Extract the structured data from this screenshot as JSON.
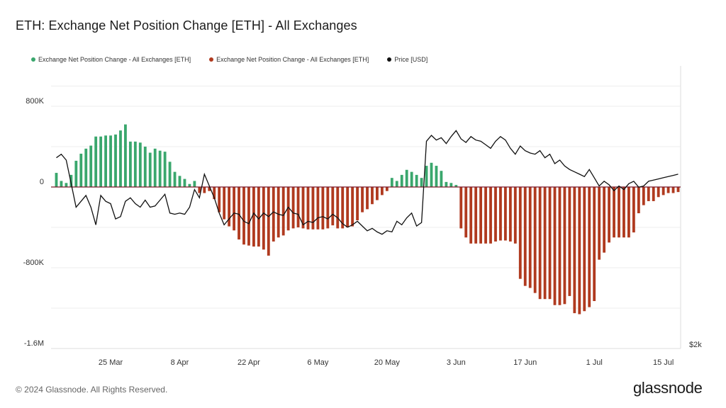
{
  "title": "ETH: Exchange Net Position Change [ETH] - All Exchanges",
  "footer": {
    "copyright": "© 2024 Glassnode. All Rights Reserved.",
    "brand": "glassnode"
  },
  "chart_data": {
    "type": "bar",
    "title": "ETH: Exchange Net Position Change [ETH] - All Exchanges",
    "legend": [
      {
        "label": "Exchange Net Position Change - All Exchanges [ETH]",
        "color": "#3aa76d"
      },
      {
        "label": "Exchange Net Position Change - All Exchanges [ETH]",
        "color": "#b03a1f"
      },
      {
        "label": "Price [USD]",
        "color": "#111111"
      }
    ],
    "legend_position": "top-left",
    "y_left": {
      "ticks": [
        "800K",
        "0",
        "-800K",
        "-1.6M"
      ],
      "tick_values": [
        800000,
        0,
        -800000,
        -1600000
      ],
      "range": [
        -1600000,
        1200000
      ]
    },
    "y_right": {
      "ticks": [
        "$2k"
      ],
      "range_usd": [
        2000,
        4400
      ]
    },
    "x_ticks": [
      "25 Mar",
      "8 Apr",
      "22 Apr",
      "6 May",
      "20 May",
      "3 Jun",
      "17 Jun",
      "1 Jul",
      "15 Jul"
    ],
    "x_tick_indices": [
      11,
      25,
      39,
      53,
      67,
      81,
      95,
      109,
      123
    ],
    "x_range_days": [
      "2024-03-14",
      "2024-07-22"
    ],
    "grid": true,
    "net_position_change": [
      140000,
      60000,
      40000,
      120000,
      260000,
      330000,
      380000,
      410000,
      500000,
      500000,
      510000,
      510000,
      520000,
      560000,
      620000,
      450000,
      450000,
      440000,
      400000,
      340000,
      380000,
      360000,
      350000,
      250000,
      150000,
      110000,
      80000,
      30000,
      60000,
      -60000,
      -60000,
      -40000,
      -120000,
      -250000,
      -320000,
      -390000,
      -430000,
      -520000,
      -570000,
      -580000,
      -590000,
      -590000,
      -620000,
      -680000,
      -540000,
      -500000,
      -480000,
      -430000,
      -410000,
      -400000,
      -410000,
      -420000,
      -420000,
      -420000,
      -420000,
      -410000,
      -380000,
      -410000,
      -410000,
      -400000,
      -390000,
      -330000,
      -250000,
      -220000,
      -170000,
      -130000,
      -80000,
      -40000,
      90000,
      60000,
      120000,
      170000,
      150000,
      120000,
      90000,
      210000,
      240000,
      210000,
      160000,
      50000,
      40000,
      20000,
      -410000,
      -500000,
      -560000,
      -560000,
      -560000,
      -560000,
      -560000,
      -540000,
      -530000,
      -530000,
      -540000,
      -560000,
      -910000,
      -980000,
      -1000000,
      -1050000,
      -1110000,
      -1110000,
      -1110000,
      -1170000,
      -1170000,
      -1160000,
      -1080000,
      -1250000,
      -1260000,
      -1230000,
      -1190000,
      -1130000,
      -720000,
      -650000,
      -550000,
      -500000,
      -500000,
      -500000,
      -500000,
      -450000,
      -260000,
      -180000,
      -140000,
      -140000,
      -100000,
      -80000,
      -60000,
      -60000,
      -50000
    ],
    "price_usd": [
      3620,
      3650,
      3600,
      3400,
      3200,
      3250,
      3300,
      3200,
      3050,
      3300,
      3250,
      3230,
      3100,
      3120,
      3250,
      3280,
      3230,
      3200,
      3260,
      3200,
      3210,
      3260,
      3310,
      3150,
      3140,
      3150,
      3140,
      3200,
      3350,
      3280,
      3480,
      3380,
      3280,
      3150,
      3050,
      3100,
      3150,
      3140,
      3080,
      3060,
      3150,
      3100,
      3150,
      3120,
      3160,
      3140,
      3130,
      3200,
      3150,
      3140,
      3050,
      3080,
      3070,
      3110,
      3120,
      3100,
      3140,
      3110,
      3060,
      3030,
      3050,
      3080,
      3040,
      3000,
      3020,
      2990,
      2970,
      3000,
      2990,
      3080,
      3050,
      3110,
      3150,
      3040,
      3070,
      3760,
      3810,
      3770,
      3790,
      3740,
      3800,
      3850,
      3780,
      3750,
      3800,
      3770,
      3760,
      3730,
      3700,
      3760,
      3800,
      3770,
      3700,
      3650,
      3720,
      3680,
      3660,
      3650,
      3680,
      3620,
      3650,
      3570,
      3600,
      3550,
      3520,
      3500,
      3480,
      3460,
      3520,
      3450,
      3380,
      3420,
      3390,
      3340,
      3380,
      3350,
      3400,
      3420,
      3370,
      3380,
      3420,
      3430,
      3440,
      3450,
      3460,
      3470,
      3480
    ]
  }
}
